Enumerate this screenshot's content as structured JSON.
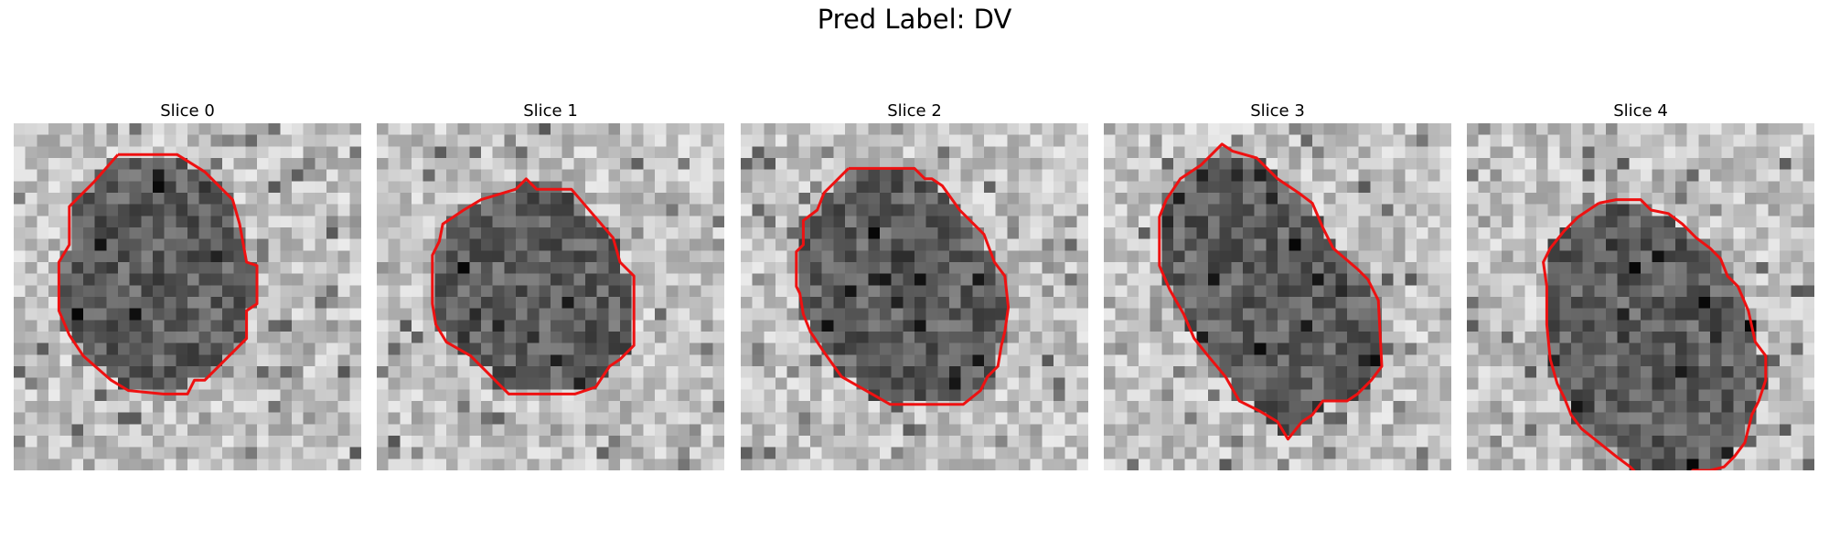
{
  "figure": {
    "title": "Pred Label: DV"
  },
  "colors": {
    "contour": "#ee1111",
    "image_colormap": "gray"
  },
  "panels": [
    {
      "title": "Slice 0",
      "contour": [
        [
          0.3,
          0.09
        ],
        [
          0.47,
          0.09
        ],
        [
          0.55,
          0.14
        ],
        [
          0.63,
          0.22
        ],
        [
          0.65,
          0.29
        ],
        [
          0.67,
          0.4
        ],
        [
          0.7,
          0.41
        ],
        [
          0.7,
          0.52
        ],
        [
          0.67,
          0.54
        ],
        [
          0.67,
          0.62
        ],
        [
          0.6,
          0.69
        ],
        [
          0.55,
          0.74
        ],
        [
          0.52,
          0.74
        ],
        [
          0.5,
          0.78
        ],
        [
          0.43,
          0.78
        ],
        [
          0.33,
          0.77
        ],
        [
          0.28,
          0.74
        ],
        [
          0.2,
          0.67
        ],
        [
          0.16,
          0.61
        ],
        [
          0.13,
          0.54
        ],
        [
          0.13,
          0.4
        ],
        [
          0.16,
          0.35
        ],
        [
          0.16,
          0.24
        ],
        [
          0.23,
          0.17
        ]
      ]
    },
    {
      "title": "Slice 1",
      "contour": [
        [
          0.4,
          0.19
        ],
        [
          0.43,
          0.16
        ],
        [
          0.46,
          0.19
        ],
        [
          0.56,
          0.19
        ],
        [
          0.62,
          0.26
        ],
        [
          0.68,
          0.33
        ],
        [
          0.7,
          0.4
        ],
        [
          0.74,
          0.44
        ],
        [
          0.74,
          0.64
        ],
        [
          0.7,
          0.68
        ],
        [
          0.67,
          0.7
        ],
        [
          0.63,
          0.76
        ],
        [
          0.57,
          0.78
        ],
        [
          0.38,
          0.78
        ],
        [
          0.32,
          0.72
        ],
        [
          0.27,
          0.67
        ],
        [
          0.2,
          0.63
        ],
        [
          0.17,
          0.58
        ],
        [
          0.16,
          0.52
        ],
        [
          0.16,
          0.38
        ],
        [
          0.18,
          0.34
        ],
        [
          0.19,
          0.29
        ],
        [
          0.25,
          0.25
        ],
        [
          0.3,
          0.22
        ]
      ]
    },
    {
      "title": "Slice 2",
      "contour": [
        [
          0.31,
          0.13
        ],
        [
          0.5,
          0.13
        ],
        [
          0.53,
          0.16
        ],
        [
          0.55,
          0.16
        ],
        [
          0.58,
          0.18
        ],
        [
          0.63,
          0.25
        ],
        [
          0.7,
          0.32
        ],
        [
          0.73,
          0.4
        ],
        [
          0.76,
          0.44
        ],
        [
          0.77,
          0.53
        ],
        [
          0.76,
          0.6
        ],
        [
          0.75,
          0.64
        ],
        [
          0.74,
          0.7
        ],
        [
          0.71,
          0.73
        ],
        [
          0.69,
          0.77
        ],
        [
          0.64,
          0.81
        ],
        [
          0.43,
          0.81
        ],
        [
          0.36,
          0.77
        ],
        [
          0.29,
          0.73
        ],
        [
          0.24,
          0.66
        ],
        [
          0.2,
          0.6
        ],
        [
          0.18,
          0.55
        ],
        [
          0.17,
          0.49
        ],
        [
          0.16,
          0.47
        ],
        [
          0.16,
          0.37
        ],
        [
          0.18,
          0.35
        ],
        [
          0.18,
          0.28
        ],
        [
          0.22,
          0.25
        ],
        [
          0.24,
          0.2
        ]
      ]
    },
    {
      "title": "Slice 3",
      "contour": [
        [
          0.32,
          0.08
        ],
        [
          0.34,
          0.06
        ],
        [
          0.37,
          0.08
        ],
        [
          0.44,
          0.1
        ],
        [
          0.5,
          0.16
        ],
        [
          0.56,
          0.2
        ],
        [
          0.6,
          0.23
        ],
        [
          0.63,
          0.3
        ],
        [
          0.66,
          0.36
        ],
        [
          0.73,
          0.42
        ],
        [
          0.76,
          0.45
        ],
        [
          0.79,
          0.51
        ],
        [
          0.8,
          0.7
        ],
        [
          0.77,
          0.74
        ],
        [
          0.73,
          0.78
        ],
        [
          0.7,
          0.8
        ],
        [
          0.63,
          0.8
        ],
        [
          0.6,
          0.84
        ],
        [
          0.57,
          0.86
        ],
        [
          0.53,
          0.91
        ],
        [
          0.5,
          0.86
        ],
        [
          0.45,
          0.83
        ],
        [
          0.39,
          0.8
        ],
        [
          0.35,
          0.73
        ],
        [
          0.3,
          0.67
        ],
        [
          0.26,
          0.62
        ],
        [
          0.23,
          0.55
        ],
        [
          0.19,
          0.48
        ],
        [
          0.16,
          0.41
        ],
        [
          0.16,
          0.27
        ],
        [
          0.18,
          0.22
        ],
        [
          0.22,
          0.16
        ],
        [
          0.28,
          0.12
        ]
      ]
    },
    {
      "title": "Slice 4",
      "contour": [
        [
          0.38,
          0.23
        ],
        [
          0.43,
          0.22
        ],
        [
          0.5,
          0.22
        ],
        [
          0.53,
          0.25
        ],
        [
          0.58,
          0.26
        ],
        [
          0.62,
          0.29
        ],
        [
          0.66,
          0.33
        ],
        [
          0.7,
          0.36
        ],
        [
          0.73,
          0.39
        ],
        [
          0.75,
          0.44
        ],
        [
          0.78,
          0.47
        ],
        [
          0.81,
          0.54
        ],
        [
          0.83,
          0.63
        ],
        [
          0.86,
          0.67
        ],
        [
          0.86,
          0.74
        ],
        [
          0.84,
          0.8
        ],
        [
          0.82,
          0.84
        ],
        [
          0.8,
          0.92
        ],
        [
          0.77,
          0.96
        ],
        [
          0.74,
          0.99
        ],
        [
          0.7,
          1.0
        ],
        [
          0.65,
          1.0
        ],
        [
          0.62,
          1.03
        ],
        [
          0.58,
          1.05
        ],
        [
          0.53,
          1.05
        ],
        [
          0.5,
          1.02
        ],
        [
          0.47,
          0.99
        ],
        [
          0.43,
          0.96
        ],
        [
          0.38,
          0.92
        ],
        [
          0.33,
          0.88
        ],
        [
          0.3,
          0.84
        ],
        [
          0.28,
          0.79
        ],
        [
          0.26,
          0.75
        ],
        [
          0.24,
          0.68
        ],
        [
          0.23,
          0.58
        ],
        [
          0.23,
          0.47
        ],
        [
          0.22,
          0.4
        ],
        [
          0.24,
          0.36
        ],
        [
          0.28,
          0.31
        ],
        [
          0.32,
          0.27
        ]
      ]
    }
  ]
}
